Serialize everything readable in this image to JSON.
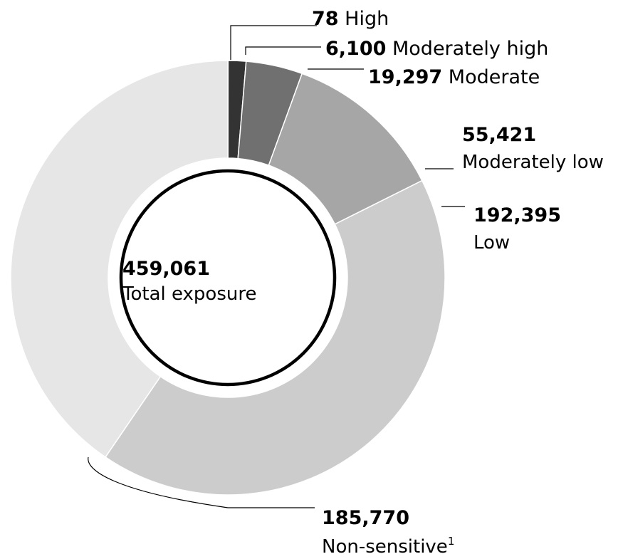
{
  "chart_data": {
    "type": "pie",
    "variant": "donut",
    "center": {
      "value": "459,061",
      "label": "Total exposure"
    },
    "slices": [
      {
        "name": "High",
        "value": 78,
        "value_label": "78",
        "color": "#e60000"
      },
      {
        "name": "Moderately high",
        "value": 6100,
        "value_label": "6,100",
        "color": "#333333"
      },
      {
        "name": "Moderate",
        "value": 19297,
        "value_label": "19,297",
        "color": "#707070"
      },
      {
        "name": "Moderately low",
        "value": 55421,
        "value_label": "55,421",
        "color": "#a6a6a6"
      },
      {
        "name": "Low",
        "value": 192395,
        "value_label": "192,395",
        "color": "#cccccc"
      },
      {
        "name": "Non-sensitive",
        "footnote": "1",
        "value": 185770,
        "value_label": "185,770",
        "color": "#e6e6e6"
      }
    ]
  }
}
